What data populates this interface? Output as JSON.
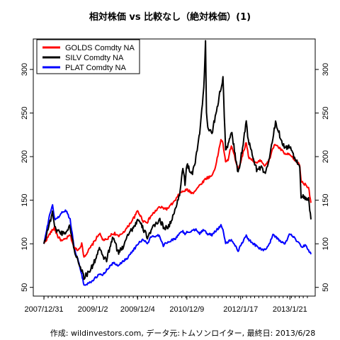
{
  "chart_data": {
    "type": "line",
    "title": "相対株価 vs 比較なし（絶対株価）(1)",
    "caption": "作成: wildinvestors.com, データ元:トムソンロイター, 最終日: 2013/6/28",
    "xlabel": "",
    "ylabel": "",
    "x_range": [
      "2007-12-31",
      "2013-06-28"
    ],
    "ylim": [
      40,
      335
    ],
    "x_ticks": [
      "2007/12/31",
      "2009/1/2",
      "2009/12/4",
      "2010/12/9",
      "2012/1/17",
      "2013/1/21"
    ],
    "y_ticks": [
      50,
      100,
      150,
      200,
      250,
      300
    ],
    "grid": false,
    "legend_position": "top-left",
    "series": [
      {
        "name": "GOLDS Comdty NA",
        "color": "#ff0000",
        "points": [
          [
            "2007-12-31",
            100
          ],
          [
            "2008-01-20",
            105
          ],
          [
            "2008-02-15",
            112
          ],
          [
            "2008-03-17",
            118
          ],
          [
            "2008-04-15",
            108
          ],
          [
            "2008-05-15",
            103
          ],
          [
            "2008-06-15",
            106
          ],
          [
            "2008-07-15",
            110
          ],
          [
            "2008-08-15",
            95
          ],
          [
            "2008-09-15",
            93
          ],
          [
            "2008-10-10",
            100
          ],
          [
            "2008-10-27",
            85
          ],
          [
            "2008-11-20",
            90
          ],
          [
            "2009-01-02",
            100
          ],
          [
            "2009-02-20",
            112
          ],
          [
            "2009-03-15",
            105
          ],
          [
            "2009-04-15",
            104
          ],
          [
            "2009-05-15",
            110
          ],
          [
            "2009-06-15",
            112
          ],
          [
            "2009-07-15",
            108
          ],
          [
            "2009-08-15",
            113
          ],
          [
            "2009-09-15",
            118
          ],
          [
            "2009-10-15",
            125
          ],
          [
            "2009-11-15",
            132
          ],
          [
            "2009-12-04",
            138
          ],
          [
            "2010-01-15",
            126
          ],
          [
            "2010-02-15",
            125
          ],
          [
            "2010-03-15",
            132
          ],
          [
            "2010-05-15",
            142
          ],
          [
            "2010-07-15",
            140
          ],
          [
            "2010-08-15",
            145
          ],
          [
            "2010-09-15",
            150
          ],
          [
            "2010-10-15",
            158
          ],
          [
            "2010-12-09",
            162
          ],
          [
            "2011-01-20",
            158
          ],
          [
            "2011-03-15",
            167
          ],
          [
            "2011-05-01",
            175
          ],
          [
            "2011-06-15",
            178
          ],
          [
            "2011-07-15",
            190
          ],
          [
            "2011-08-22",
            220
          ],
          [
            "2011-09-06",
            215
          ],
          [
            "2011-09-26",
            193
          ],
          [
            "2011-10-15",
            197
          ],
          [
            "2011-11-08",
            213
          ],
          [
            "2011-12-29",
            186
          ],
          [
            "2012-01-17",
            194
          ],
          [
            "2012-02-28",
            217
          ],
          [
            "2012-03-15",
            200
          ],
          [
            "2012-05-16",
            192
          ],
          [
            "2012-06-15",
            196
          ],
          [
            "2012-07-15",
            190
          ],
          [
            "2012-08-15",
            194
          ],
          [
            "2012-09-15",
            210
          ],
          [
            "2012-10-05",
            214
          ],
          [
            "2012-11-15",
            208
          ],
          [
            "2012-12-15",
            203
          ],
          [
            "2013-01-21",
            202
          ],
          [
            "2013-02-20",
            197
          ],
          [
            "2013-03-15",
            194
          ],
          [
            "2013-04-05",
            190
          ],
          [
            "2013-04-15",
            172
          ],
          [
            "2013-05-15",
            168
          ],
          [
            "2013-06-10",
            165
          ],
          [
            "2013-06-28",
            147
          ]
        ]
      },
      {
        "name": "SILV Comdty NA",
        "color": "#000000",
        "points": [
          [
            "2007-12-31",
            100
          ],
          [
            "2008-01-20",
            112
          ],
          [
            "2008-02-15",
            125
          ],
          [
            "2008-03-05",
            138
          ],
          [
            "2008-03-20",
            118
          ],
          [
            "2008-04-15",
            115
          ],
          [
            "2008-05-15",
            112
          ],
          [
            "2008-06-15",
            114
          ],
          [
            "2008-07-15",
            120
          ],
          [
            "2008-08-15",
            92
          ],
          [
            "2008-09-15",
            80
          ],
          [
            "2008-10-10",
            70
          ],
          [
            "2008-10-27",
            62
          ],
          [
            "2008-11-20",
            65
          ],
          [
            "2009-01-02",
            75
          ],
          [
            "2009-02-20",
            95
          ],
          [
            "2009-03-15",
            85
          ],
          [
            "2009-04-15",
            82
          ],
          [
            "2009-06-03",
            108
          ],
          [
            "2009-07-10",
            90
          ],
          [
            "2009-08-15",
            96
          ],
          [
            "2009-09-15",
            110
          ],
          [
            "2009-10-15",
            115
          ],
          [
            "2009-11-20",
            123
          ],
          [
            "2009-12-04",
            128
          ],
          [
            "2010-01-15",
            117
          ],
          [
            "2010-02-15",
            108
          ],
          [
            "2010-03-15",
            115
          ],
          [
            "2010-05-15",
            128
          ],
          [
            "2010-06-15",
            120
          ],
          [
            "2010-07-15",
            118
          ],
          [
            "2010-08-15",
            126
          ],
          [
            "2010-09-15",
            140
          ],
          [
            "2010-10-15",
            158
          ],
          [
            "2010-11-09",
            187
          ],
          [
            "2010-11-25",
            170
          ],
          [
            "2010-12-09",
            190
          ],
          [
            "2011-01-20",
            180
          ],
          [
            "2011-02-15",
            198
          ],
          [
            "2011-03-15",
            228
          ],
          [
            "2011-04-15",
            280
          ],
          [
            "2011-04-28",
            330
          ],
          [
            "2011-05-05",
            250
          ],
          [
            "2011-05-20",
            230
          ],
          [
            "2011-06-15",
            227
          ],
          [
            "2011-07-15",
            250
          ],
          [
            "2011-08-22",
            279
          ],
          [
            "2011-09-06",
            290
          ],
          [
            "2011-09-26",
            205
          ],
          [
            "2011-10-15",
            213
          ],
          [
            "2011-11-08",
            230
          ],
          [
            "2011-12-29",
            180
          ],
          [
            "2012-01-17",
            197
          ],
          [
            "2012-02-28",
            240
          ],
          [
            "2012-03-15",
            218
          ],
          [
            "2012-05-16",
            185
          ],
          [
            "2012-06-15",
            188
          ],
          [
            "2012-07-15",
            180
          ],
          [
            "2012-08-15",
            195
          ],
          [
            "2012-09-15",
            220
          ],
          [
            "2012-10-05",
            240
          ],
          [
            "2012-11-15",
            220
          ],
          [
            "2012-12-15",
            210
          ],
          [
            "2013-01-21",
            212
          ],
          [
            "2013-02-20",
            200
          ],
          [
            "2013-03-15",
            195
          ],
          [
            "2013-04-05",
            188
          ],
          [
            "2013-04-15",
            155
          ],
          [
            "2013-05-15",
            152
          ],
          [
            "2013-06-10",
            150
          ],
          [
            "2013-06-28",
            128
          ]
        ]
      },
      {
        "name": "PLAT Comdty NA",
        "color": "#0000ff",
        "points": [
          [
            "2007-12-31",
            100
          ],
          [
            "2008-01-20",
            115
          ],
          [
            "2008-02-15",
            135
          ],
          [
            "2008-03-05",
            145
          ],
          [
            "2008-03-20",
            128
          ],
          [
            "2008-04-15",
            130
          ],
          [
            "2008-05-15",
            136
          ],
          [
            "2008-06-15",
            138
          ],
          [
            "2008-07-15",
            128
          ],
          [
            "2008-08-15",
            95
          ],
          [
            "2008-09-15",
            80
          ],
          [
            "2008-10-10",
            65
          ],
          [
            "2008-10-27",
            52
          ],
          [
            "2008-11-20",
            54
          ],
          [
            "2009-01-02",
            58
          ],
          [
            "2009-02-20",
            65
          ],
          [
            "2009-03-15",
            64
          ],
          [
            "2009-04-15",
            70
          ],
          [
            "2009-06-03",
            78
          ],
          [
            "2009-07-10",
            75
          ],
          [
            "2009-08-15",
            80
          ],
          [
            "2009-09-15",
            83
          ],
          [
            "2009-10-15",
            90
          ],
          [
            "2009-11-20",
            96
          ],
          [
            "2009-12-04",
            100
          ],
          [
            "2010-01-15",
            105
          ],
          [
            "2010-02-15",
            100
          ],
          [
            "2010-03-15",
            108
          ],
          [
            "2010-05-15",
            110
          ],
          [
            "2010-06-15",
            98
          ],
          [
            "2010-07-15",
            102
          ],
          [
            "2010-08-15",
            104
          ],
          [
            "2010-09-15",
            106
          ],
          [
            "2010-10-15",
            112
          ],
          [
            "2010-11-09",
            115
          ],
          [
            "2010-11-25",
            110
          ],
          [
            "2010-12-09",
            113
          ],
          [
            "2011-01-20",
            115
          ],
          [
            "2011-02-15",
            117
          ],
          [
            "2011-03-15",
            112
          ],
          [
            "2011-04-15",
            116
          ],
          [
            "2011-05-05",
            112
          ],
          [
            "2011-06-15",
            110
          ],
          [
            "2011-07-15",
            115
          ],
          [
            "2011-08-22",
            121
          ],
          [
            "2011-09-06",
            117
          ],
          [
            "2011-09-26",
            100
          ],
          [
            "2011-10-15",
            102
          ],
          [
            "2011-11-08",
            105
          ],
          [
            "2011-12-29",
            92
          ],
          [
            "2012-01-17",
            98
          ],
          [
            "2012-02-28",
            110
          ],
          [
            "2012-03-15",
            105
          ],
          [
            "2012-05-16",
            97
          ],
          [
            "2012-06-15",
            94
          ],
          [
            "2012-07-15",
            93
          ],
          [
            "2012-08-15",
            98
          ],
          [
            "2012-09-15",
            110
          ],
          [
            "2012-10-05",
            108
          ],
          [
            "2012-11-15",
            102
          ],
          [
            "2012-12-15",
            100
          ],
          [
            "2013-01-21",
            112
          ],
          [
            "2013-02-20",
            108
          ],
          [
            "2013-03-15",
            102
          ],
          [
            "2013-04-05",
            100
          ],
          [
            "2013-04-15",
            96
          ],
          [
            "2013-05-15",
            98
          ],
          [
            "2013-06-10",
            93
          ],
          [
            "2013-06-28",
            88
          ]
        ]
      }
    ]
  }
}
